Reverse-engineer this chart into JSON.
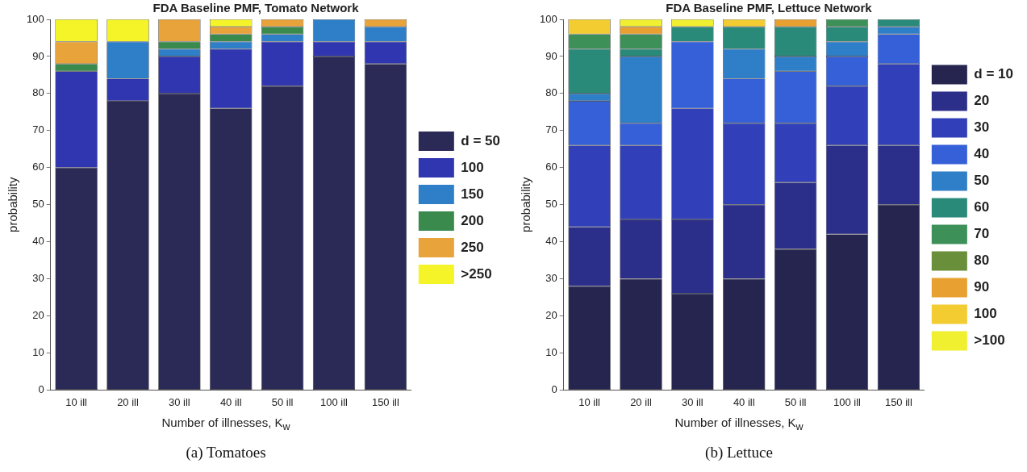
{
  "chart_data": [
    {
      "type": "bar",
      "title": "FDA Baseline PMF, Tomato Network",
      "xlabel": "Number of illnesses, K$_{w}$",
      "ylabel": "probability",
      "categories": [
        "10 ill",
        "20 ill",
        "30 ill",
        "40 ill",
        "50 ill",
        "100 ill",
        "150 ill"
      ],
      "stacked": true,
      "legend": "right",
      "grid": false,
      "ylim": [
        0,
        100
      ],
      "yticks": [
        0,
        10,
        20,
        30,
        40,
        50,
        60,
        70,
        80,
        90,
        100
      ],
      "annotations": [
        "(a) Tomatoes"
      ],
      "series": [
        {
          "name": "d = 50",
          "color": "#2b2a57",
          "values": [
            60,
            78,
            80,
            76,
            82,
            90,
            88
          ]
        },
        {
          "name": "100",
          "color": "#3036b0",
          "values": [
            26,
            6,
            10,
            16,
            12,
            4,
            6
          ]
        },
        {
          "name": "150",
          "color": "#2f7fc8",
          "values": [
            0,
            10,
            2,
            2,
            2,
            6,
            4
          ]
        },
        {
          "name": "200",
          "color": "#3a8a4e",
          "values": [
            2,
            0,
            2,
            2,
            2,
            0,
            0
          ]
        },
        {
          "name": "250",
          "color": "#e8a33a",
          "values": [
            6,
            0,
            6,
            2,
            2,
            0,
            2
          ]
        },
        {
          "name": ">250",
          "color": "#f4f428",
          "values": [
            6,
            6,
            0,
            2,
            0,
            0,
            0
          ]
        }
      ]
    },
    {
      "type": "bar",
      "title": "FDA Baseline PMF, Lettuce Network",
      "xlabel": "Number of illnesses, K$_{w}$",
      "ylabel": "probability",
      "categories": [
        "10 ill",
        "20 ill",
        "30 ill",
        "40 ill",
        "50 ill",
        "100 ill",
        "150 ill"
      ],
      "stacked": true,
      "legend": "right",
      "grid": false,
      "ylim": [
        0,
        100
      ],
      "yticks": [
        0,
        10,
        20,
        30,
        40,
        50,
        60,
        70,
        80,
        90,
        100
      ],
      "annotations": [
        "(b) Lettuce"
      ],
      "series": [
        {
          "name": "d = 10",
          "color": "#25254f",
          "values": [
            28,
            30,
            26,
            30,
            38,
            42,
            50
          ]
        },
        {
          "name": "20",
          "color": "#2c2f8a",
          "values": [
            16,
            16,
            20,
            20,
            18,
            24,
            16
          ]
        },
        {
          "name": "30",
          "color": "#3140b8",
          "values": [
            22,
            20,
            30,
            22,
            16,
            16,
            22
          ]
        },
        {
          "name": "40",
          "color": "#3560d8",
          "values": [
            12,
            6,
            18,
            12,
            14,
            8,
            8
          ]
        },
        {
          "name": "50",
          "color": "#2f7ec8",
          "values": [
            2,
            18,
            0,
            8,
            4,
            4,
            2
          ]
        },
        {
          "name": "60",
          "color": "#2a8a7a",
          "values": [
            12,
            2,
            4,
            6,
            8,
            4,
            2
          ]
        },
        {
          "name": "70",
          "color": "#3d9058",
          "values": [
            4,
            4,
            0,
            0,
            0,
            2,
            0
          ]
        },
        {
          "name": "80",
          "color": "#6a8f3a",
          "values": [
            0,
            0,
            0,
            0,
            0,
            0,
            0
          ]
        },
        {
          "name": "90",
          "color": "#e8a030",
          "values": [
            0,
            2,
            0,
            0,
            2,
            0,
            0
          ]
        },
        {
          "name": "100",
          "color": "#f2cc30",
          "values": [
            4,
            0,
            0,
            2,
            0,
            0,
            0
          ]
        },
        {
          "name": ">100",
          "color": "#f0f030",
          "values": [
            0,
            2,
            2,
            0,
            0,
            0,
            0
          ]
        }
      ]
    }
  ]
}
